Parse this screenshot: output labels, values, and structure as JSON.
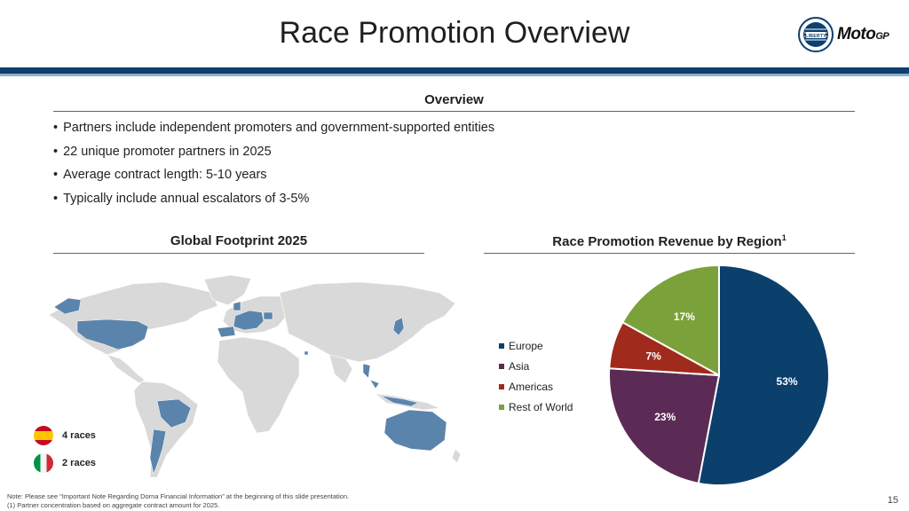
{
  "header": {
    "title": "Race Promotion Overview",
    "logo_liberty": "LIBERTY",
    "logo_motogp_main": "Moto",
    "logo_motogp_small": "GP"
  },
  "overview": {
    "heading": "Overview",
    "bullets": [
      "Partners include independent promoters and government-supported entities",
      "22 unique promoter partners in 2025",
      "Average contract length: 5-10 years",
      "Typically include annual escalators of 3-5%"
    ]
  },
  "footprint": {
    "heading": "Global Footprint 2025",
    "legend": [
      {
        "label": "4 races",
        "flag": "spain"
      },
      {
        "label": "2 races",
        "flag": "italy"
      }
    ],
    "colors": {
      "land": "#d9d9d9",
      "highlight": "#5b84ac"
    }
  },
  "revenue": {
    "heading": "Race Promotion Revenue by Region",
    "heading_sup": "1"
  },
  "chart_data": {
    "type": "pie",
    "title": "Race Promotion Revenue by Region",
    "categories": [
      "Europe",
      "Asia",
      "Americas",
      "Rest of World"
    ],
    "values": [
      53,
      23,
      7,
      17
    ],
    "labels": [
      "53%",
      "23%",
      "7%",
      "17%"
    ],
    "colors": [
      "#0b3f6c",
      "#5c2b55",
      "#a02a1c",
      "#7ba23a"
    ],
    "legend_position": "left"
  },
  "footer": {
    "note_1": "Note: Please see “Important Note Regarding Dorna Financial Information” at the beginning of this slide presentation.",
    "note_2": "(1) Partner concentration based on aggregate contract amount for 2025.",
    "page_number": "15"
  }
}
